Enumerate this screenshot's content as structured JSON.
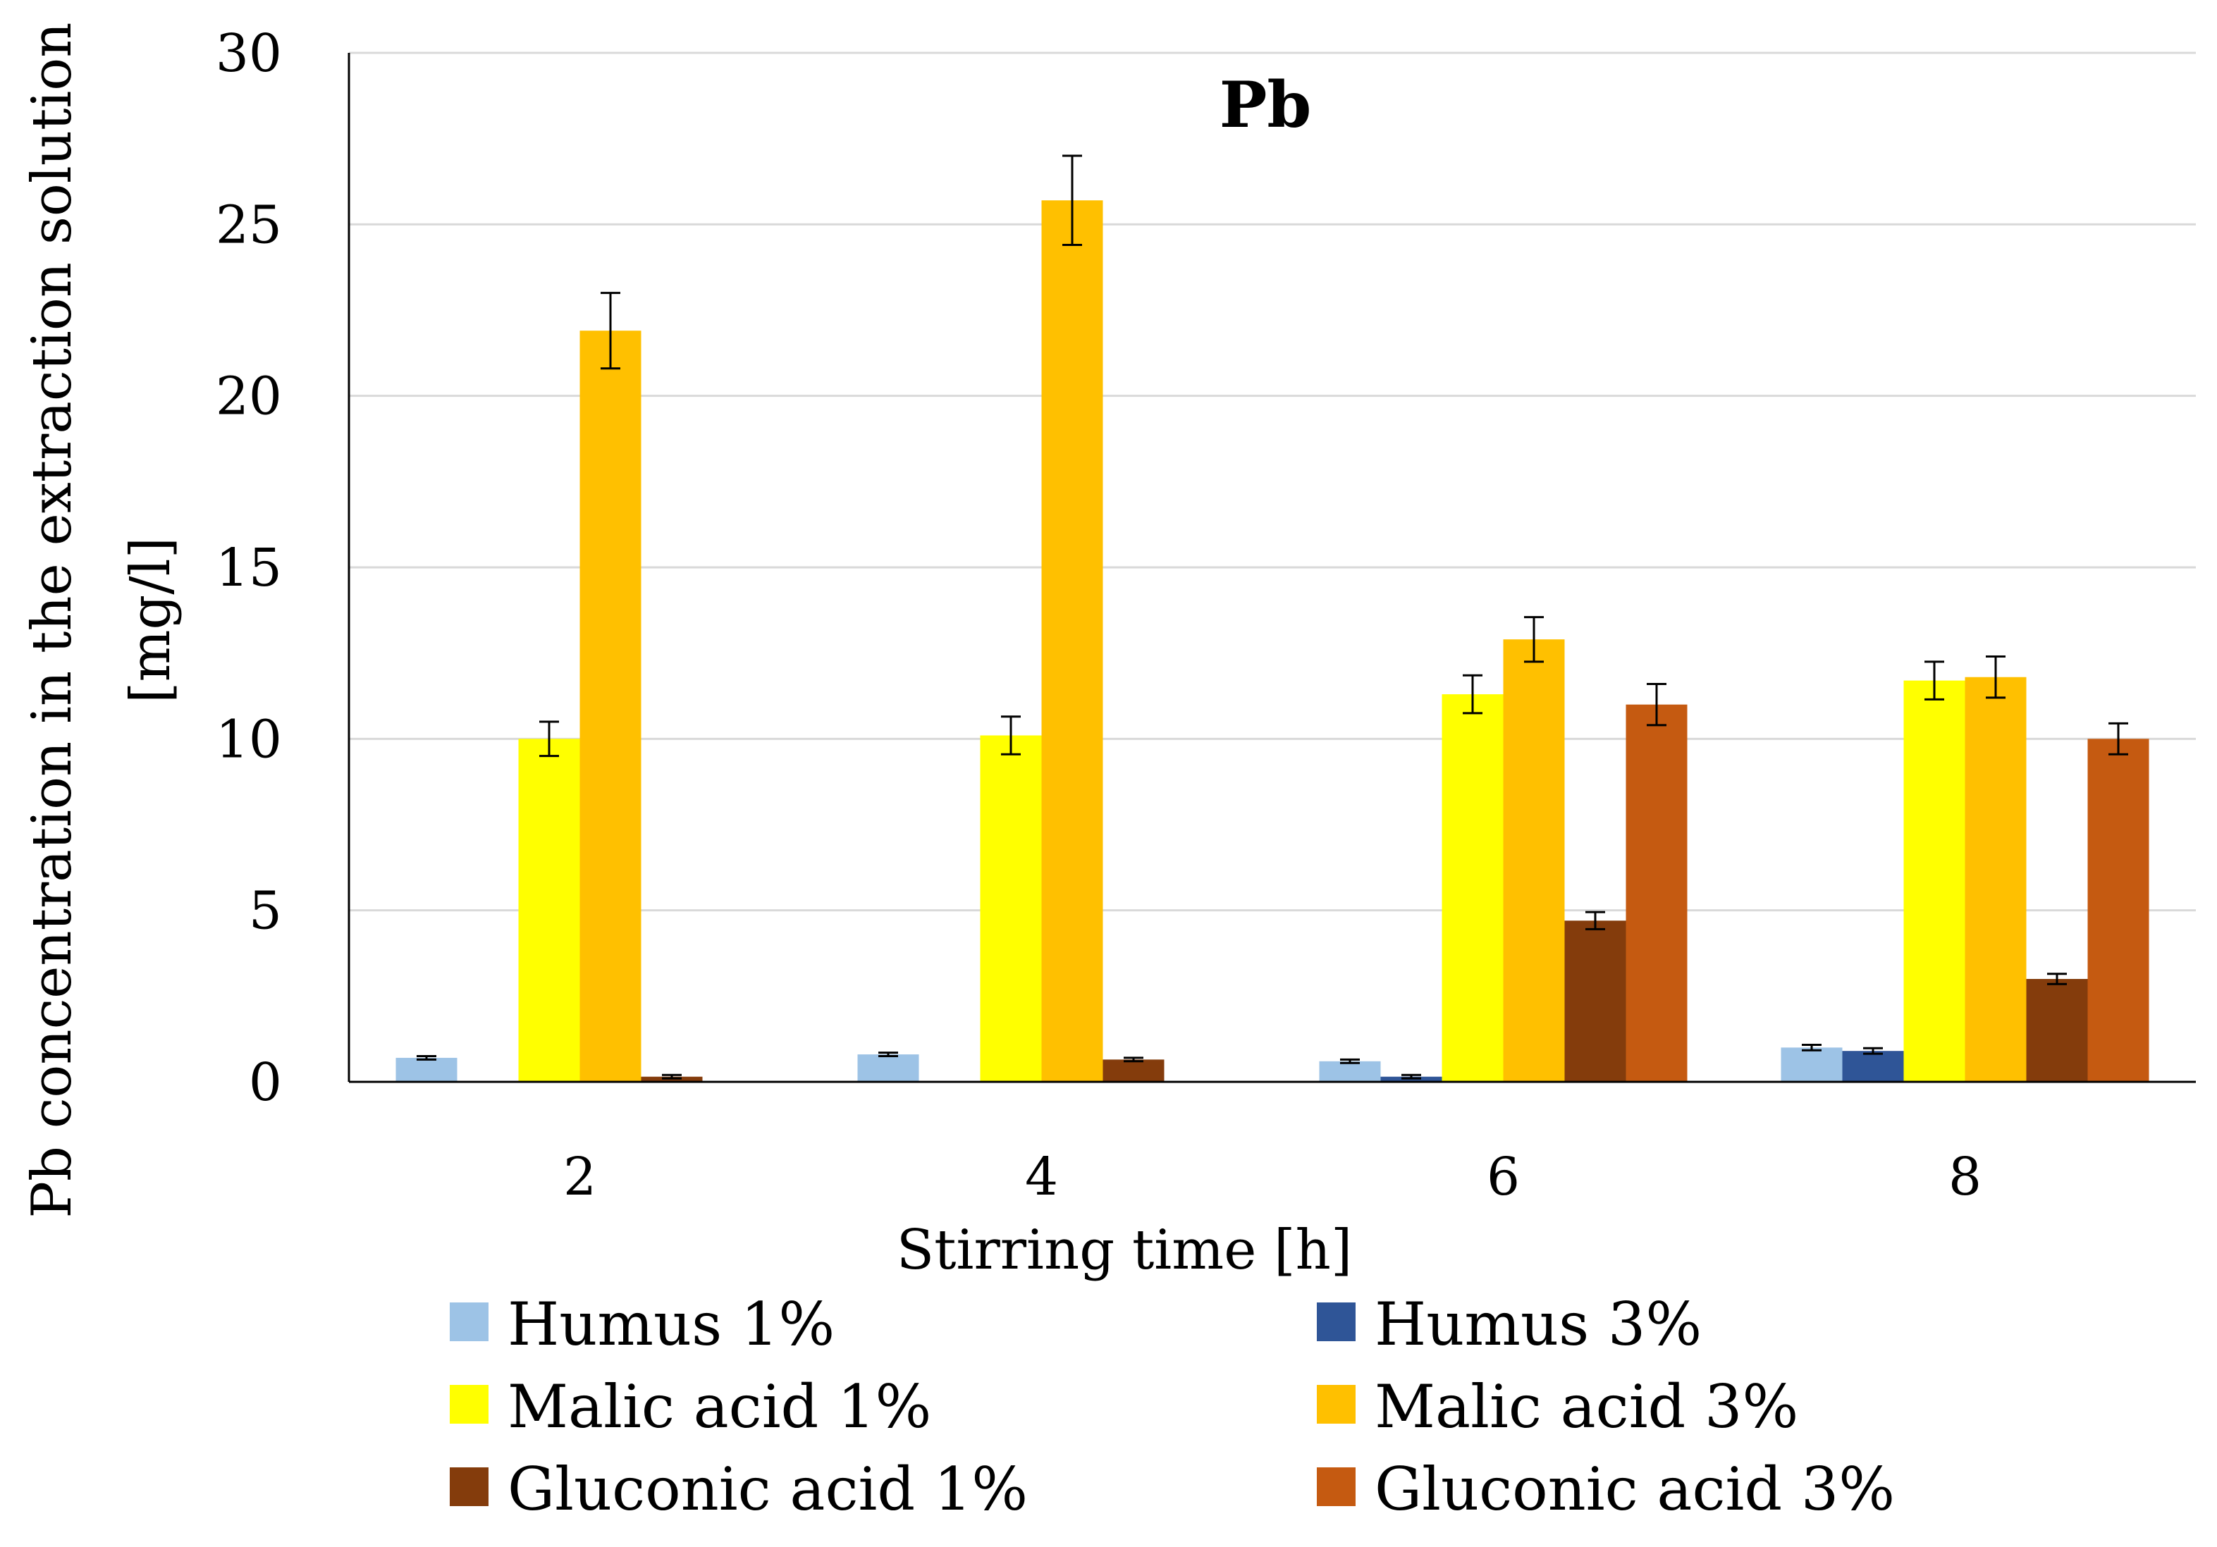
{
  "chart_data": {
    "type": "bar",
    "title": "Pb",
    "xlabel": "Stirring time [h]",
    "ylabel": "Pb concentration in the extraction solution",
    "ylabel_unit": "[mg/l]",
    "ylim": [
      0,
      30
    ],
    "yticks": [
      0,
      5,
      10,
      15,
      20,
      25,
      30
    ],
    "grid": true,
    "legend_position": "bottom",
    "categories": [
      "2",
      "4",
      "6",
      "8"
    ],
    "series": [
      {
        "name": "Humus 1%",
        "color": "#9dc3e6",
        "values": [
          0.7,
          0.8,
          0.6,
          1.0
        ],
        "errors": [
          0.05,
          0.05,
          0.05,
          0.08
        ]
      },
      {
        "name": "Humus 3%",
        "color": "#2f5597",
        "values": [
          0.0,
          0.0,
          0.15,
          0.9
        ],
        "errors": [
          0.0,
          0.0,
          0.05,
          0.08
        ]
      },
      {
        "name": "Malic acid 1%",
        "color": "#ffff00",
        "values": [
          10.0,
          10.1,
          11.3,
          11.7
        ],
        "errors": [
          0.5,
          0.55,
          0.55,
          0.55
        ]
      },
      {
        "name": "Malic acid 3%",
        "color": "#ffc000",
        "values": [
          21.9,
          25.7,
          12.9,
          11.8
        ],
        "errors": [
          1.1,
          1.3,
          0.65,
          0.6
        ]
      },
      {
        "name": "Gluconic acid 1%",
        "color": "#843c0c",
        "values": [
          0.15,
          0.65,
          4.7,
          3.0
        ],
        "errors": [
          0.05,
          0.05,
          0.25,
          0.15
        ]
      },
      {
        "name": "Gluconic acid 3%",
        "color": "#c55a11",
        "values": [
          0.0,
          0.0,
          11.0,
          10.0
        ],
        "errors": [
          0.0,
          0.0,
          0.6,
          0.45
        ]
      }
    ]
  }
}
